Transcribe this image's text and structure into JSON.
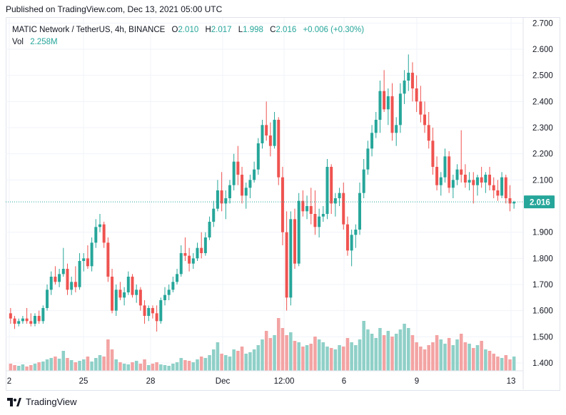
{
  "header": {
    "published": "Published on TradingView.com, Dec 13, 2021 05:00 UTC"
  },
  "legend": {
    "symbol": "MATIC Network / TetherUS, 4h, BINANCE",
    "o_label": "O",
    "o": "2.010",
    "h_label": "H",
    "h": "2.017",
    "l_label": "L",
    "l": "1.998",
    "c_label": "C",
    "c": "2.016",
    "change": "+0.006 (+0.30%)",
    "vol_label": "Vol",
    "vol": "2.258M"
  },
  "footer": {
    "brand": "TradingView"
  },
  "colors": {
    "up": "#26a69a",
    "down": "#ef5350",
    "vol_up": "#8fd0c8",
    "vol_down": "#f3a3a3",
    "price_tag": "#26a69a"
  },
  "chart_data": {
    "type": "candlestick",
    "ylim": [
      1.37,
      2.72
    ],
    "y_ticks": [
      "2.700",
      "2.600",
      "2.500",
      "2.400",
      "2.300",
      "2.200",
      "2.100",
      "1.900",
      "1.800",
      "1.700",
      "1.600",
      "1.500",
      "1.400"
    ],
    "x_ticks": [
      "2",
      "25",
      "28",
      "Dec",
      "12:00",
      "6",
      "9",
      "13"
    ],
    "last_price": "2.016",
    "last_price_value": 2.016,
    "candles": [
      [
        1.59,
        1.61,
        1.55,
        1.57
      ],
      [
        1.57,
        1.58,
        1.53,
        1.55
      ],
      [
        1.55,
        1.57,
        1.54,
        1.56
      ],
      [
        1.56,
        1.58,
        1.55,
        1.57
      ],
      [
        1.57,
        1.61,
        1.55,
        1.56
      ],
      [
        1.56,
        1.59,
        1.54,
        1.55
      ],
      [
        1.55,
        1.59,
        1.54,
        1.58
      ],
      [
        1.58,
        1.6,
        1.55,
        1.56
      ],
      [
        1.56,
        1.62,
        1.55,
        1.61
      ],
      [
        1.61,
        1.7,
        1.6,
        1.68
      ],
      [
        1.68,
        1.75,
        1.66,
        1.73
      ],
      [
        1.73,
        1.77,
        1.7,
        1.71
      ],
      [
        1.71,
        1.76,
        1.69,
        1.74
      ],
      [
        1.74,
        1.84,
        1.73,
        1.76
      ],
      [
        1.76,
        1.78,
        1.66,
        1.68
      ],
      [
        1.68,
        1.73,
        1.66,
        1.71
      ],
      [
        1.71,
        1.77,
        1.67,
        1.69
      ],
      [
        1.69,
        1.82,
        1.68,
        1.79
      ],
      [
        1.79,
        1.82,
        1.75,
        1.8
      ],
      [
        1.8,
        1.85,
        1.76,
        1.77
      ],
      [
        1.77,
        1.88,
        1.75,
        1.86
      ],
      [
        1.86,
        1.95,
        1.84,
        1.92
      ],
      [
        1.92,
        1.97,
        1.9,
        1.93
      ],
      [
        1.93,
        1.94,
        1.84,
        1.86
      ],
      [
        1.86,
        1.88,
        1.71,
        1.73
      ],
      [
        1.73,
        1.76,
        1.59,
        1.6
      ],
      [
        1.6,
        1.7,
        1.58,
        1.68
      ],
      [
        1.68,
        1.71,
        1.64,
        1.65
      ],
      [
        1.65,
        1.69,
        1.62,
        1.67
      ],
      [
        1.67,
        1.75,
        1.66,
        1.73
      ],
      [
        1.73,
        1.74,
        1.65,
        1.66
      ],
      [
        1.66,
        1.7,
        1.63,
        1.68
      ],
      [
        1.68,
        1.69,
        1.6,
        1.62
      ],
      [
        1.62,
        1.64,
        1.55,
        1.58
      ],
      [
        1.58,
        1.62,
        1.56,
        1.61
      ],
      [
        1.61,
        1.62,
        1.57,
        1.59
      ],
      [
        1.59,
        1.62,
        1.52,
        1.56
      ],
      [
        1.56,
        1.65,
        1.55,
        1.64
      ],
      [
        1.64,
        1.69,
        1.62,
        1.66
      ],
      [
        1.66,
        1.7,
        1.64,
        1.68
      ],
      [
        1.68,
        1.73,
        1.67,
        1.71
      ],
      [
        1.71,
        1.76,
        1.7,
        1.74
      ],
      [
        1.74,
        1.85,
        1.73,
        1.82
      ],
      [
        1.82,
        1.88,
        1.79,
        1.81
      ],
      [
        1.81,
        1.84,
        1.75,
        1.78
      ],
      [
        1.78,
        1.82,
        1.76,
        1.8
      ],
      [
        1.8,
        1.86,
        1.79,
        1.84
      ],
      [
        1.84,
        1.9,
        1.8,
        1.82
      ],
      [
        1.82,
        1.9,
        1.81,
        1.88
      ],
      [
        1.88,
        1.96,
        1.87,
        1.94
      ],
      [
        1.94,
        2.02,
        1.92,
        1.99
      ],
      [
        1.99,
        2.1,
        1.98,
        2.06
      ],
      [
        2.06,
        2.13,
        1.98,
        2.01
      ],
      [
        2.01,
        2.06,
        1.95,
        2.03
      ],
      [
        2.03,
        2.1,
        2.01,
        2.08
      ],
      [
        2.08,
        2.2,
        2.06,
        2.17
      ],
      [
        2.17,
        2.23,
        2.08,
        2.12
      ],
      [
        2.12,
        2.15,
        2.01,
        2.04
      ],
      [
        2.04,
        2.09,
        1.99,
        2.07
      ],
      [
        2.07,
        2.12,
        2.03,
        2.1
      ],
      [
        2.1,
        2.17,
        2.09,
        2.14
      ],
      [
        2.14,
        2.26,
        2.12,
        2.24
      ],
      [
        2.24,
        2.33,
        2.22,
        2.31
      ],
      [
        2.31,
        2.4,
        2.25,
        2.27
      ],
      [
        2.27,
        2.32,
        2.19,
        2.23
      ],
      [
        2.23,
        2.36,
        2.22,
        2.33
      ],
      [
        2.33,
        2.34,
        2.08,
        2.11
      ],
      [
        2.11,
        2.15,
        1.85,
        1.9
      ],
      [
        1.9,
        1.98,
        1.6,
        1.65
      ],
      [
        1.65,
        1.98,
        1.62,
        1.95
      ],
      [
        1.95,
        1.99,
        1.76,
        1.78
      ],
      [
        1.78,
        2.05,
        1.77,
        2.02
      ],
      [
        2.02,
        2.06,
        1.96,
        1.98
      ],
      [
        1.98,
        2.04,
        1.95,
        2.0
      ],
      [
        2.0,
        2.07,
        1.93,
        1.97
      ],
      [
        1.97,
        2.06,
        1.89,
        1.92
      ],
      [
        1.92,
        1.99,
        1.88,
        1.96
      ],
      [
        1.96,
        2.0,
        1.94,
        1.97
      ],
      [
        1.97,
        2.18,
        1.95,
        2.15
      ],
      [
        2.15,
        2.16,
        1.97,
        2.01
      ],
      [
        2.01,
        2.05,
        1.96,
        2.03
      ],
      [
        2.03,
        2.07,
        2.0,
        2.05
      ],
      [
        2.05,
        2.09,
        1.91,
        1.93
      ],
      [
        1.93,
        1.96,
        1.81,
        1.83
      ],
      [
        1.83,
        1.91,
        1.77,
        1.89
      ],
      [
        1.89,
        1.93,
        1.84,
        1.91
      ],
      [
        1.91,
        2.09,
        1.89,
        2.05
      ],
      [
        2.05,
        2.18,
        2.03,
        2.14
      ],
      [
        2.14,
        2.25,
        2.12,
        2.22
      ],
      [
        2.22,
        2.31,
        2.19,
        2.28
      ],
      [
        2.28,
        2.36,
        2.26,
        2.33
      ],
      [
        2.33,
        2.48,
        2.28,
        2.44
      ],
      [
        2.44,
        2.52,
        2.36,
        2.37
      ],
      [
        2.37,
        2.45,
        2.31,
        2.42
      ],
      [
        2.42,
        2.47,
        2.25,
        2.28
      ],
      [
        2.28,
        2.34,
        2.23,
        2.31
      ],
      [
        2.31,
        2.47,
        2.28,
        2.43
      ],
      [
        2.43,
        2.52,
        2.39,
        2.48
      ],
      [
        2.48,
        2.58,
        2.44,
        2.51
      ],
      [
        2.51,
        2.55,
        2.4,
        2.45
      ],
      [
        2.45,
        2.5,
        2.36,
        2.4
      ],
      [
        2.4,
        2.46,
        2.32,
        2.35
      ],
      [
        2.35,
        2.4,
        2.28,
        2.31
      ],
      [
        2.31,
        2.36,
        2.22,
        2.25
      ],
      [
        2.25,
        2.3,
        2.12,
        2.15
      ],
      [
        2.15,
        2.19,
        2.06,
        2.08
      ],
      [
        2.08,
        2.13,
        2.04,
        2.11
      ],
      [
        2.11,
        2.22,
        2.09,
        2.19
      ],
      [
        2.19,
        2.21,
        2.05,
        2.07
      ],
      [
        2.07,
        2.12,
        2.03,
        2.1
      ],
      [
        2.1,
        2.16,
        2.08,
        2.14
      ],
      [
        2.14,
        2.29,
        2.09,
        2.12
      ],
      [
        2.12,
        2.16,
        2.07,
        2.09
      ],
      [
        2.09,
        2.13,
        2.06,
        2.1
      ],
      [
        2.1,
        2.13,
        2.01,
        2.08
      ],
      [
        2.08,
        2.12,
        2.04,
        2.11
      ],
      [
        2.11,
        2.15,
        2.07,
        2.09
      ],
      [
        2.09,
        2.13,
        2.05,
        2.12
      ],
      [
        2.12,
        2.15,
        2.06,
        2.08
      ],
      [
        2.08,
        2.11,
        2.03,
        2.06
      ],
      [
        2.06,
        2.1,
        2.02,
        2.04
      ],
      [
        2.04,
        2.13,
        2.03,
        2.11
      ],
      [
        2.11,
        2.12,
        2.01,
        2.03
      ],
      [
        2.03,
        2.08,
        1.98,
        2.01
      ],
      [
        2.01,
        2.02,
        1.99,
        2.016
      ]
    ],
    "volume_fraction": [
      0.1,
      0.08,
      0.07,
      0.09,
      0.06,
      0.08,
      0.1,
      0.12,
      0.13,
      0.16,
      0.18,
      0.2,
      0.17,
      0.28,
      0.18,
      0.15,
      0.12,
      0.14,
      0.16,
      0.2,
      0.13,
      0.18,
      0.22,
      0.2,
      0.44,
      0.3,
      0.16,
      0.12,
      0.1,
      0.09,
      0.12,
      0.14,
      0.1,
      0.16,
      0.08,
      0.1,
      0.12,
      0.09,
      0.08,
      0.07,
      0.1,
      0.12,
      0.18,
      0.15,
      0.14,
      0.12,
      0.16,
      0.2,
      0.18,
      0.22,
      0.3,
      0.4,
      0.24,
      0.22,
      0.2,
      0.3,
      0.28,
      0.34,
      0.24,
      0.26,
      0.3,
      0.36,
      0.44,
      0.56,
      0.46,
      0.5,
      0.74,
      0.6,
      0.5,
      0.54,
      0.42,
      0.4,
      0.34,
      0.36,
      0.38,
      0.48,
      0.44,
      0.4,
      0.34,
      0.32,
      0.3,
      0.36,
      0.34,
      0.46,
      0.4,
      0.36,
      0.44,
      0.7,
      0.58,
      0.52,
      0.46,
      0.6,
      0.5,
      0.56,
      0.48,
      0.52,
      0.58,
      0.66,
      0.6,
      0.5,
      0.4,
      0.34,
      0.3,
      0.36,
      0.4,
      0.5,
      0.44,
      0.38,
      0.46,
      0.36,
      0.44,
      0.52,
      0.4,
      0.38,
      0.32,
      0.36,
      0.42,
      0.3,
      0.28,
      0.24,
      0.2,
      0.18,
      0.22,
      0.16,
      0.2
    ]
  }
}
